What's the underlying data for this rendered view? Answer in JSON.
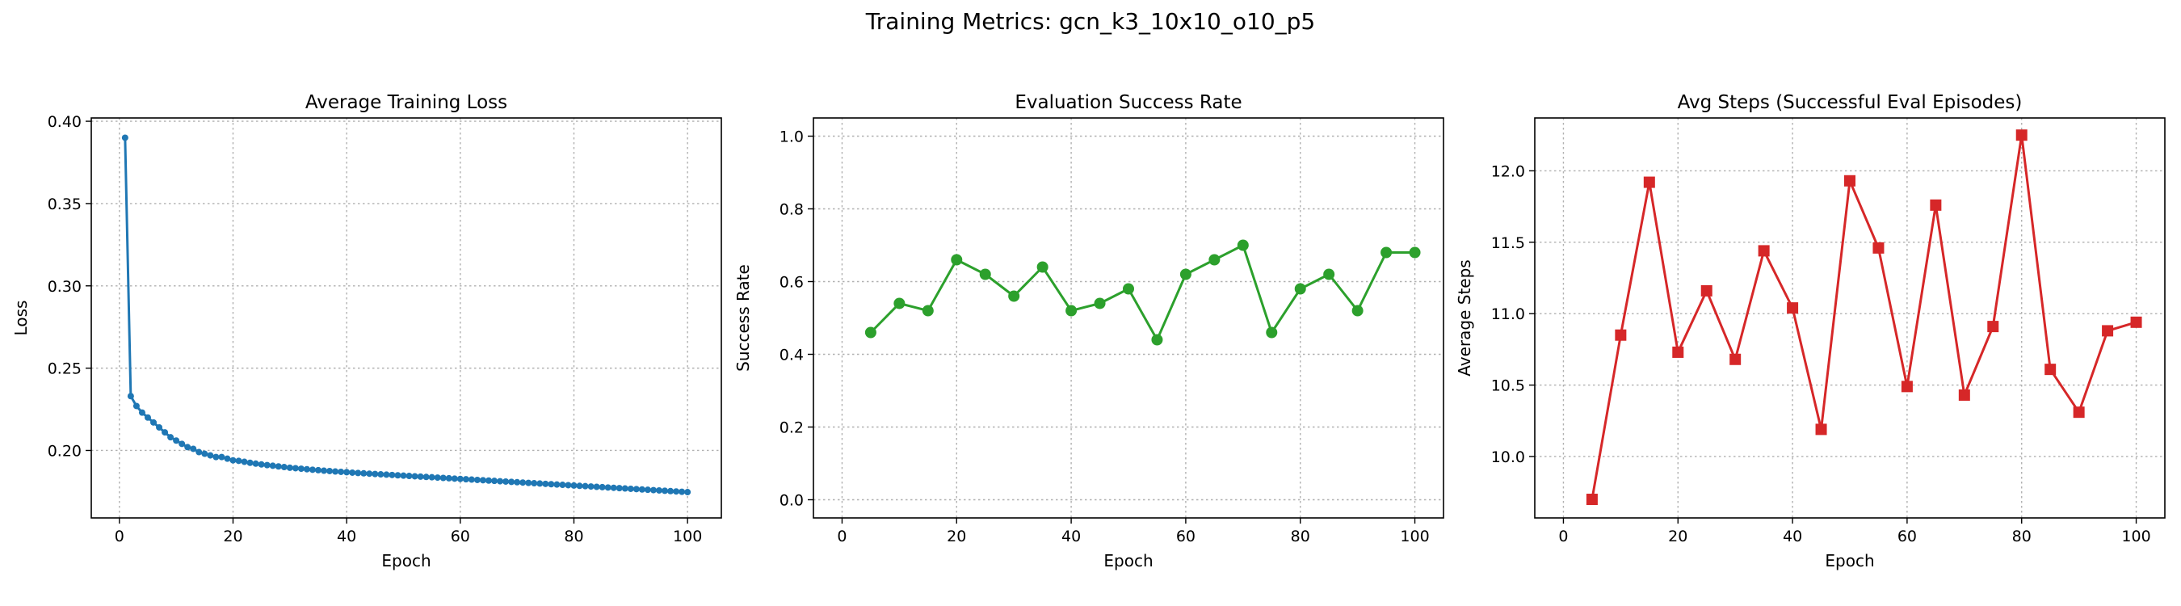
{
  "figure": {
    "suptitle": "Training Metrics: gcn_k3_10x10_o10_p5"
  },
  "chart_data": [
    {
      "type": "line",
      "title": "Average Training Loss",
      "xlabel": "Epoch",
      "ylabel": "Loss",
      "xlim": [
        -4.95,
        105.95
      ],
      "ylim": [
        0.159,
        0.402
      ],
      "xticks": [
        0,
        20,
        40,
        60,
        80,
        100
      ],
      "yticks": [
        0.2,
        0.25,
        0.3,
        0.35,
        0.4
      ],
      "ytick_decimals": 2,
      "grid": true,
      "color": "#1f77b4",
      "marker": "circle",
      "marker_size": 4,
      "line_width": 3,
      "series": [
        {
          "x": [
            1,
            2,
            3,
            4,
            5,
            6,
            7,
            8,
            9,
            10,
            11,
            12,
            13,
            14,
            15,
            16,
            17,
            18,
            19,
            20,
            21,
            22,
            23,
            24,
            25,
            26,
            27,
            28,
            29,
            30,
            31,
            32,
            33,
            34,
            35,
            36,
            37,
            38,
            39,
            40,
            41,
            42,
            43,
            44,
            45,
            46,
            47,
            48,
            49,
            50,
            51,
            52,
            53,
            54,
            55,
            56,
            57,
            58,
            59,
            60,
            61,
            62,
            63,
            64,
            65,
            66,
            67,
            68,
            69,
            70,
            71,
            72,
            73,
            74,
            75,
            76,
            77,
            78,
            79,
            80,
            81,
            82,
            83,
            84,
            85,
            86,
            87,
            88,
            89,
            90,
            91,
            92,
            93,
            94,
            95,
            96,
            97,
            98,
            99,
            100
          ],
          "y": [
            0.39,
            0.233,
            0.227,
            0.223,
            0.22,
            0.217,
            0.214,
            0.211,
            0.208,
            0.206,
            0.204,
            0.202,
            0.201,
            0.199,
            0.198,
            0.197,
            0.196,
            0.196,
            0.195,
            0.194,
            0.1937,
            0.1931,
            0.1925,
            0.192,
            0.1915,
            0.1911,
            0.1907,
            0.1903,
            0.1899,
            0.1895,
            0.1892,
            0.1889,
            0.1886,
            0.1883,
            0.188,
            0.1877,
            0.1875,
            0.1872,
            0.187,
            0.1868,
            0.1865,
            0.1863,
            0.1861,
            0.1859,
            0.1857,
            0.1855,
            0.1853,
            0.1851,
            0.1849,
            0.1847,
            0.1845,
            0.1843,
            0.1841,
            0.1839,
            0.1837,
            0.1835,
            0.1833,
            0.1831,
            0.1829,
            0.1827,
            0.1825,
            0.1823,
            0.1821,
            0.1819,
            0.1817,
            0.1815,
            0.1813,
            0.1811,
            0.1809,
            0.1807,
            0.1805,
            0.1803,
            0.1801,
            0.1799,
            0.1797,
            0.1795,
            0.1793,
            0.1791,
            0.1789,
            0.1787,
            0.1785,
            0.1783,
            0.1781,
            0.1779,
            0.1777,
            0.1775,
            0.1773,
            0.1771,
            0.1769,
            0.1767,
            0.1765,
            0.1763,
            0.1761,
            0.1759,
            0.1757,
            0.1755,
            0.1753,
            0.1751,
            0.1749,
            0.1747
          ]
        }
      ]
    },
    {
      "type": "line",
      "title": "Evaluation Success Rate",
      "xlabel": "Epoch",
      "ylabel": "Success Rate",
      "xlim": [
        -5,
        105
      ],
      "ylim": [
        -0.05,
        1.05
      ],
      "xticks": [
        0,
        20,
        40,
        60,
        80,
        100
      ],
      "yticks": [
        0.0,
        0.2,
        0.4,
        0.6,
        0.8,
        1.0
      ],
      "ytick_decimals": 1,
      "grid": true,
      "color": "#2ca02c",
      "marker": "circle",
      "marker_size": 7,
      "line_width": 3,
      "series": [
        {
          "x": [
            5,
            10,
            15,
            20,
            25,
            30,
            35,
            40,
            45,
            50,
            55,
            60,
            65,
            70,
            75,
            80,
            85,
            90,
            95,
            100
          ],
          "y": [
            0.46,
            0.54,
            0.52,
            0.66,
            0.62,
            0.56,
            0.64,
            0.52,
            0.54,
            0.58,
            0.44,
            0.62,
            0.66,
            0.7,
            0.46,
            0.58,
            0.62,
            0.52,
            0.68,
            0.68
          ]
        }
      ]
    },
    {
      "type": "line",
      "title": "Avg Steps (Successful Eval Episodes)",
      "xlabel": "Epoch",
      "ylabel": "Average Steps",
      "xlim": [
        -5,
        105
      ],
      "ylim": [
        9.57,
        12.37
      ],
      "xticks": [
        0,
        20,
        40,
        60,
        80,
        100
      ],
      "yticks": [
        10.0,
        10.5,
        11.0,
        11.5,
        12.0
      ],
      "ytick_decimals": 1,
      "grid": true,
      "color": "#d62728",
      "marker": "square",
      "marker_size": 7,
      "line_width": 3,
      "series": [
        {
          "x": [
            5,
            10,
            15,
            20,
            25,
            30,
            35,
            40,
            45,
            50,
            55,
            60,
            65,
            70,
            75,
            80,
            85,
            90,
            95,
            100
          ],
          "y": [
            9.7,
            10.85,
            11.92,
            10.73,
            11.16,
            10.68,
            11.44,
            11.04,
            10.19,
            11.93,
            11.46,
            10.49,
            11.76,
            10.43,
            10.91,
            12.25,
            10.61,
            10.31,
            10.88,
            10.94
          ]
        }
      ]
    }
  ]
}
